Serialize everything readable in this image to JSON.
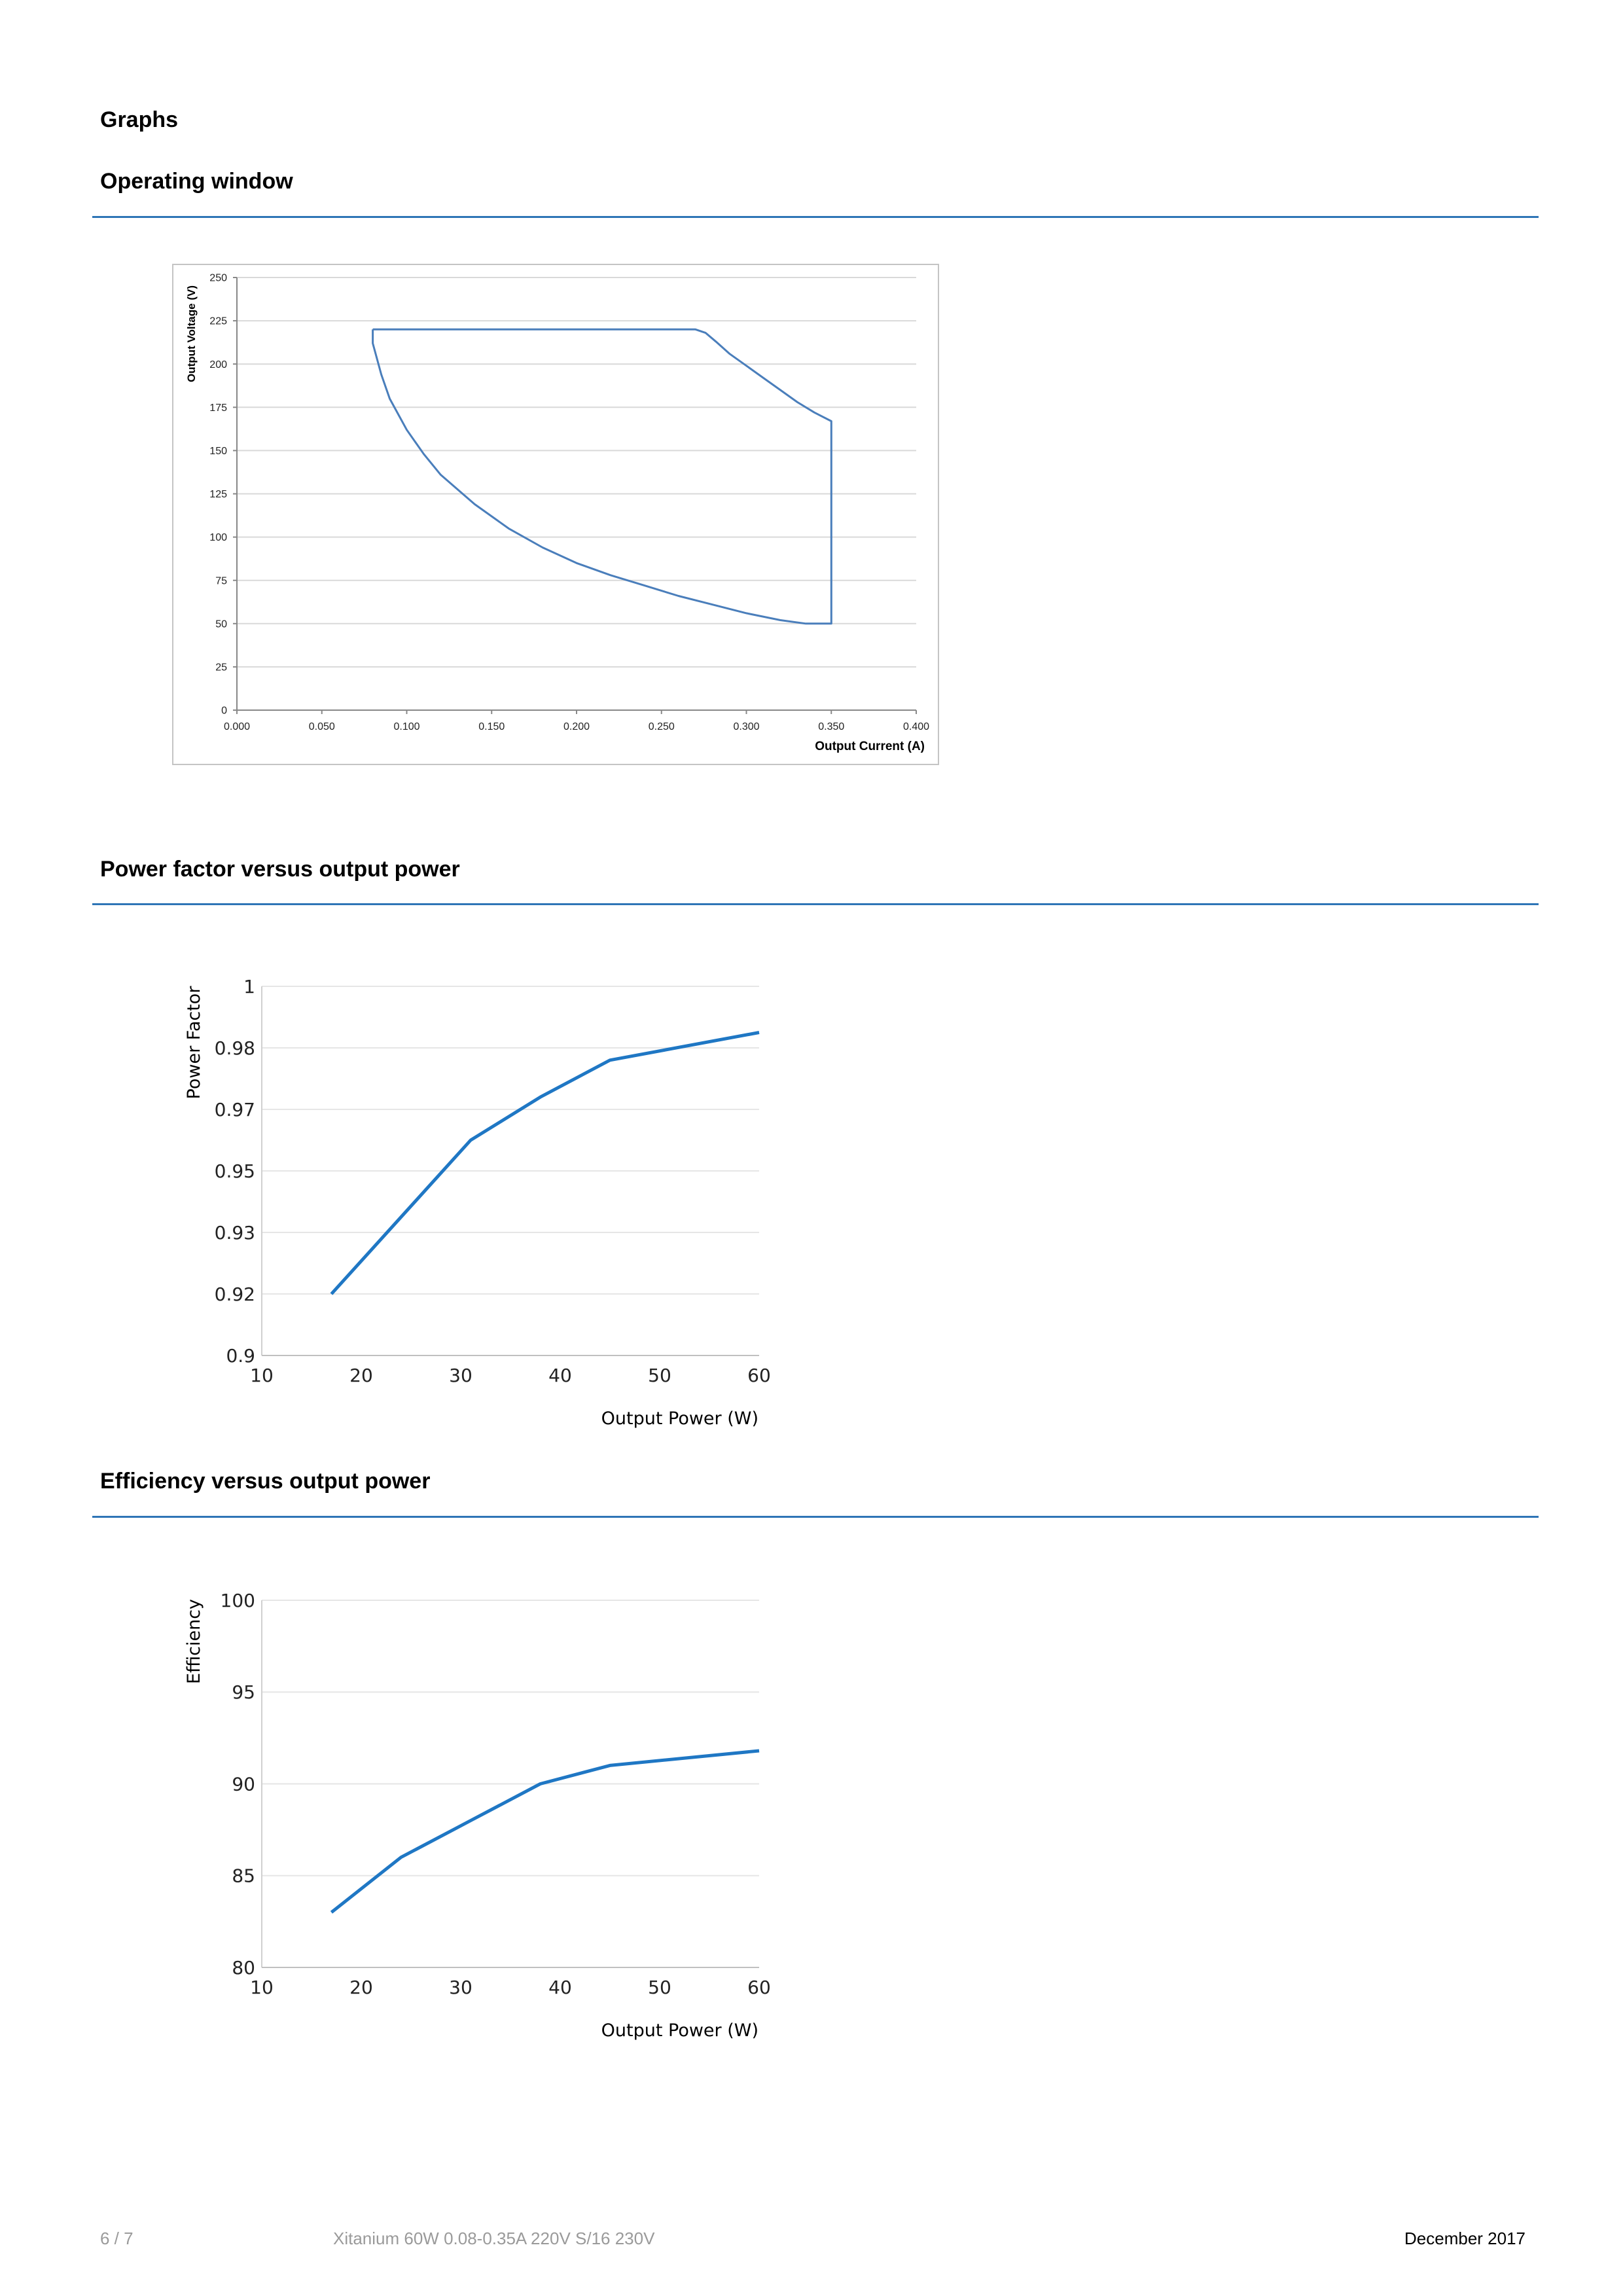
{
  "page": {
    "title": "Graphs",
    "sections": [
      {
        "heading": "Operating window"
      },
      {
        "heading": "Power factor versus output power"
      },
      {
        "heading": "Efficiency versus output power"
      }
    ]
  },
  "footer": {
    "page": "6 / 7",
    "product": "Xitanium 60W 0.08-0.35A 220V S/16 230V",
    "date": "December 2017"
  },
  "colors": {
    "accent": "#2e75b6",
    "series": "#1f77c4"
  },
  "chart_data": [
    {
      "type": "line",
      "title": "",
      "xlabel": "Output Current (A)",
      "ylabel": "Output Voltage (V)",
      "xlim": [
        0,
        0.4
      ],
      "ylim": [
        0,
        250
      ],
      "xticks": [
        "0.000",
        "0.050",
        "0.100",
        "0.150",
        "0.200",
        "0.250",
        "0.300",
        "0.350",
        "0.400"
      ],
      "yticks": [
        "0",
        "25",
        "50",
        "75",
        "100",
        "125",
        "150",
        "175",
        "200",
        "225",
        "250"
      ],
      "grid": true,
      "series": [
        {
          "x": [
            0.08,
            0.27,
            0.276,
            0.282,
            0.29,
            0.3,
            0.31,
            0.32,
            0.33,
            0.34,
            0.35,
            0.35,
            0.335,
            0.32,
            0.3,
            0.28,
            0.26,
            0.24,
            0.22,
            0.2,
            0.18,
            0.16,
            0.14,
            0.12,
            0.11,
            0.1,
            0.09,
            0.085,
            0.08,
            0.08
          ],
          "y": [
            220,
            220,
            218,
            213,
            206,
            199,
            192,
            185,
            178,
            172,
            167,
            50,
            50,
            52,
            56,
            61,
            66,
            72,
            78,
            85,
            94,
            105,
            119,
            136,
            148,
            162,
            180,
            194,
            212,
            220
          ]
        }
      ]
    },
    {
      "type": "line",
      "title": "",
      "xlabel": "Output Power (W)",
      "ylabel": "Power Factor",
      "xlim": [
        10,
        60
      ],
      "ylim": [
        0.9,
        1
      ],
      "xticks": [
        "10",
        "20",
        "30",
        "40",
        "50",
        "60"
      ],
      "yticks": [
        "0.9",
        "0.92",
        "0.93",
        "0.95",
        "0.97",
        "0.98",
        "1"
      ],
      "grid": true,
      "series": [
        {
          "x": [
            17,
            31,
            38,
            45,
            60
          ],
          "y": [
            0.92,
            0.96,
            0.972,
            0.978,
            0.985
          ]
        }
      ]
    },
    {
      "type": "line",
      "title": "",
      "xlabel": "Output Power (W)",
      "ylabel": "Efficiency",
      "xlim": [
        10,
        60
      ],
      "ylim": [
        80,
        100
      ],
      "xticks": [
        "10",
        "20",
        "30",
        "40",
        "50",
        "60"
      ],
      "yticks": [
        "80",
        "85",
        "90",
        "95",
        "100"
      ],
      "grid": true,
      "series": [
        {
          "x": [
            17,
            24,
            31,
            38,
            45,
            60
          ],
          "y": [
            83,
            86,
            88,
            90,
            91,
            91.8
          ]
        }
      ]
    }
  ]
}
